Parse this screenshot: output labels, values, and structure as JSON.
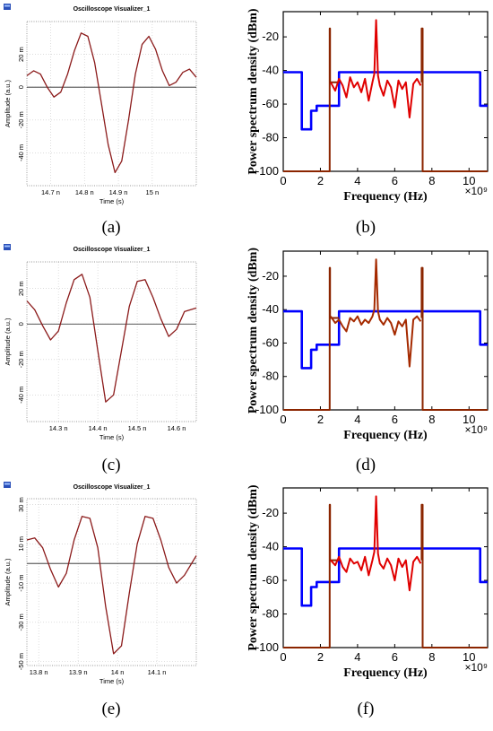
{
  "chart_data": [
    {
      "panel": "(a)",
      "type": "line",
      "title": "Oscilloscope Visualizer_1",
      "xlabel": "Time (s)",
      "ylabel": "Amplitude (a.u.)",
      "xlim": [
        14.63,
        15.13
      ],
      "ylim": [
        -60,
        40
      ],
      "xticks": [
        {
          "v": 14.7,
          "l": "14.7 n"
        },
        {
          "v": 14.8,
          "l": "14.8 n"
        },
        {
          "v": 14.9,
          "l": "14.9 n"
        },
        {
          "v": 15.0,
          "l": "15 n"
        }
      ],
      "yticks": [
        {
          "v": 20,
          "l": "20 m"
        },
        {
          "v": 0,
          "l": "0"
        },
        {
          "v": -20,
          "l": "-20 m"
        },
        {
          "v": -40,
          "l": "-40 m"
        }
      ],
      "series": [
        {
          "color": "#8B1A1A",
          "x": [
            14.63,
            14.65,
            14.67,
            14.69,
            14.71,
            14.73,
            14.75,
            14.77,
            14.79,
            14.81,
            14.83,
            14.85,
            14.87,
            14.89,
            14.91,
            14.93,
            14.95,
            14.97,
            14.99,
            15.01,
            15.03,
            15.05,
            15.07,
            15.09,
            15.11,
            15.13
          ],
          "y": [
            7,
            10,
            8,
            0,
            -6,
            -3,
            8,
            22,
            33,
            31,
            15,
            -10,
            -35,
            -52,
            -45,
            -20,
            8,
            26,
            31,
            23,
            10,
            1,
            3,
            9,
            11,
            6
          ]
        }
      ]
    },
    {
      "panel": "(b)",
      "type": "line",
      "xlabel": "Frequency (Hz)",
      "ylabel": "Power spectrum density (dBm)",
      "x_multiplier": "×10⁹",
      "xlim": [
        0,
        11
      ],
      "ylim": [
        -100,
        -5
      ],
      "xticks": [
        {
          "v": 0,
          "l": "0"
        },
        {
          "v": 2,
          "l": "2"
        },
        {
          "v": 4,
          "l": "4"
        },
        {
          "v": 6,
          "l": "6"
        },
        {
          "v": 8,
          "l": "8"
        },
        {
          "v": 10,
          "l": "10"
        }
      ],
      "yticks": [
        {
          "v": -20,
          "l": "-20"
        },
        {
          "v": -40,
          "l": "-40"
        },
        {
          "v": -60,
          "l": "-60"
        },
        {
          "v": -80,
          "l": "-80"
        },
        {
          "v": -100,
          "l": "-100"
        }
      ],
      "series": [
        {
          "color": "#0000FF",
          "x": [
            0,
            1,
            1,
            1.5,
            1.5,
            1.8,
            1.8,
            3,
            3,
            10.6,
            10.6,
            11
          ],
          "y": [
            -41,
            -41,
            -75,
            -75,
            -64,
            -64,
            -61,
            -61,
            -41,
            -41,
            -61,
            -61
          ]
        },
        {
          "color": "#8B2500",
          "x": [
            0,
            2.5,
            2.5,
            2.52,
            2.52,
            3
          ],
          "y": [
            -100,
            -100,
            -15,
            -15,
            -47,
            -47
          ]
        },
        {
          "color": "#8B2500",
          "x": [
            7.45,
            7.45,
            7.5,
            7.5,
            11
          ],
          "y": [
            -47,
            -15,
            -15,
            -100,
            -100
          ]
        },
        {
          "color": "#E00000",
          "x": [
            2.55,
            2.8,
            3.0,
            3.2,
            3.4,
            3.6,
            3.8,
            4.0,
            4.2,
            4.4,
            4.6,
            4.8,
            4.9,
            5.0,
            5.1,
            5.2,
            5.4,
            5.6,
            5.8,
            6.0,
            6.2,
            6.4,
            6.6,
            6.8,
            7.0,
            7.2,
            7.4
          ],
          "y": [
            -47,
            -52,
            -45,
            -49,
            -56,
            -44,
            -50,
            -47,
            -53,
            -45,
            -58,
            -47,
            -42,
            -10,
            -43,
            -49,
            -55,
            -46,
            -50,
            -62,
            -46,
            -51,
            -47,
            -68,
            -48,
            -45,
            -49
          ]
        }
      ]
    },
    {
      "panel": "(c)",
      "type": "line",
      "title": "Oscilloscope Visualizer_1",
      "xlabel": "Time (s)",
      "ylabel": "Amplitude (a.u.)",
      "xlim": [
        14.22,
        14.65
      ],
      "ylim": [
        -55,
        35
      ],
      "xticks": [
        {
          "v": 14.3,
          "l": "14.3 n"
        },
        {
          "v": 14.4,
          "l": "14.4 n"
        },
        {
          "v": 14.5,
          "l": "14.5 n"
        },
        {
          "v": 14.6,
          "l": "14.6 n"
        }
      ],
      "yticks": [
        {
          "v": 20,
          "l": "20 m"
        },
        {
          "v": 0,
          "l": "0"
        },
        {
          "v": -20,
          "l": "-20 m"
        },
        {
          "v": -40,
          "l": "-40 m"
        }
      ],
      "series": [
        {
          "color": "#8B1A1A",
          "x": [
            14.22,
            14.24,
            14.26,
            14.28,
            14.3,
            14.32,
            14.34,
            14.36,
            14.38,
            14.4,
            14.42,
            14.44,
            14.46,
            14.48,
            14.5,
            14.52,
            14.54,
            14.56,
            14.58,
            14.6,
            14.62,
            14.65
          ],
          "y": [
            13,
            8,
            -1,
            -9,
            -4,
            12,
            25,
            28,
            15,
            -15,
            -44,
            -40,
            -15,
            10,
            24,
            25,
            15,
            3,
            -7,
            -3,
            7,
            9
          ]
        }
      ]
    },
    {
      "panel": "(d)",
      "type": "line",
      "xlabel": "Frequency (Hz)",
      "ylabel": "Power spectrum density (dBm)",
      "x_multiplier": "×10⁹",
      "xlim": [
        0,
        11
      ],
      "ylim": [
        -100,
        -5
      ],
      "xticks": [
        {
          "v": 0,
          "l": "0"
        },
        {
          "v": 2,
          "l": "2"
        },
        {
          "v": 4,
          "l": "4"
        },
        {
          "v": 6,
          "l": "6"
        },
        {
          "v": 8,
          "l": "8"
        },
        {
          "v": 10,
          "l": "10"
        }
      ],
      "yticks": [
        {
          "v": -20,
          "l": "-20"
        },
        {
          "v": -40,
          "l": "-40"
        },
        {
          "v": -60,
          "l": "-60"
        },
        {
          "v": -80,
          "l": "-80"
        },
        {
          "v": -100,
          "l": "-100"
        }
      ],
      "series": [
        {
          "color": "#0000FF",
          "x": [
            0,
            1,
            1,
            1.5,
            1.5,
            1.8,
            1.8,
            3,
            3,
            10.6,
            10.6,
            11
          ],
          "y": [
            -41,
            -41,
            -75,
            -75,
            -64,
            -64,
            -61,
            -61,
            -41,
            -41,
            -61,
            -61
          ]
        },
        {
          "color": "#8B2500",
          "x": [
            0,
            2.5,
            2.5,
            2.52,
            2.52,
            3
          ],
          "y": [
            -100,
            -100,
            -15,
            -15,
            -45,
            -45
          ]
        },
        {
          "color": "#8B2500",
          "x": [
            7.45,
            7.45,
            7.5,
            7.5,
            11
          ],
          "y": [
            -45,
            -15,
            -15,
            -100,
            -100
          ]
        },
        {
          "color": "#A52A00",
          "x": [
            2.55,
            2.8,
            3.0,
            3.2,
            3.4,
            3.6,
            3.8,
            4.0,
            4.2,
            4.4,
            4.6,
            4.8,
            4.9,
            5.0,
            5.1,
            5.2,
            5.4,
            5.6,
            5.8,
            6.0,
            6.2,
            6.4,
            6.6,
            6.8,
            7.0,
            7.2,
            7.4
          ],
          "y": [
            -44,
            -48,
            -46,
            -50,
            -53,
            -45,
            -47,
            -44,
            -49,
            -46,
            -48,
            -44,
            -40,
            -10,
            -41,
            -46,
            -49,
            -45,
            -48,
            -55,
            -47,
            -50,
            -46,
            -74,
            -46,
            -44,
            -47
          ]
        }
      ]
    },
    {
      "panel": "(e)",
      "type": "line",
      "title": "Oscilloscope Visualizer_1",
      "xlabel": "Time (s)",
      "ylabel": "Amplitude (a.u.)",
      "xlim": [
        13.77,
        14.2
      ],
      "ylim": [
        -52,
        33
      ],
      "xticks": [
        {
          "v": 13.8,
          "l": "13.8 n"
        },
        {
          "v": 13.9,
          "l": "13.9 n"
        },
        {
          "v": 14.0,
          "l": "14 n"
        },
        {
          "v": 14.1,
          "l": "14.1 n"
        }
      ],
      "yticks": [
        {
          "v": 30,
          "l": "30 m"
        },
        {
          "v": 10,
          "l": "10 m"
        },
        {
          "v": -10,
          "l": "-10 m"
        },
        {
          "v": -30,
          "l": "-30 m"
        },
        {
          "v": -50,
          "l": "-50 m"
        }
      ],
      "series": [
        {
          "color": "#8B1A1A",
          "x": [
            13.77,
            13.79,
            13.81,
            13.83,
            13.85,
            13.87,
            13.89,
            13.91,
            13.93,
            13.95,
            13.97,
            13.99,
            14.01,
            14.03,
            14.05,
            14.07,
            14.09,
            14.11,
            14.13,
            14.15,
            14.17,
            14.2
          ],
          "y": [
            12,
            13,
            8,
            -3,
            -12,
            -5,
            12,
            24,
            23,
            8,
            -22,
            -46,
            -42,
            -15,
            10,
            24,
            23,
            12,
            -2,
            -10,
            -6,
            4
          ]
        }
      ]
    },
    {
      "panel": "(f)",
      "type": "line",
      "xlabel": "Frequency (Hz)",
      "ylabel": "Power spectrum density (dBm)",
      "x_multiplier": "×10⁹",
      "xlim": [
        0,
        11
      ],
      "ylim": [
        -100,
        -5
      ],
      "xticks": [
        {
          "v": 0,
          "l": "0"
        },
        {
          "v": 2,
          "l": "2"
        },
        {
          "v": 4,
          "l": "4"
        },
        {
          "v": 6,
          "l": "6"
        },
        {
          "v": 8,
          "l": "8"
        },
        {
          "v": 10,
          "l": "10"
        }
      ],
      "yticks": [
        {
          "v": -20,
          "l": "-20"
        },
        {
          "v": -40,
          "l": "-40"
        },
        {
          "v": -60,
          "l": "-60"
        },
        {
          "v": -80,
          "l": "-80"
        },
        {
          "v": -100,
          "l": "-100"
        }
      ],
      "series": [
        {
          "color": "#0000FF",
          "x": [
            0,
            1,
            1,
            1.5,
            1.5,
            1.8,
            1.8,
            3,
            3,
            10.6,
            10.6,
            11
          ],
          "y": [
            -41,
            -41,
            -75,
            -75,
            -64,
            -64,
            -61,
            -61,
            -41,
            -41,
            -61,
            -61
          ]
        },
        {
          "color": "#8B2500",
          "x": [
            0,
            2.5,
            2.5,
            2.52,
            2.52,
            3
          ],
          "y": [
            -100,
            -100,
            -15,
            -15,
            -48,
            -48
          ]
        },
        {
          "color": "#8B2500",
          "x": [
            7.45,
            7.45,
            7.5,
            7.5,
            11
          ],
          "y": [
            -48,
            -15,
            -15,
            -100,
            -100
          ]
        },
        {
          "color": "#E00000",
          "x": [
            2.55,
            2.8,
            3.0,
            3.2,
            3.4,
            3.6,
            3.8,
            4.0,
            4.2,
            4.4,
            4.6,
            4.8,
            4.9,
            5.0,
            5.1,
            5.2,
            5.4,
            5.6,
            5.8,
            6.0,
            6.2,
            6.4,
            6.6,
            6.8,
            7.0,
            7.2,
            7.4
          ],
          "y": [
            -48,
            -51,
            -46,
            -52,
            -55,
            -47,
            -50,
            -49,
            -54,
            -46,
            -57,
            -48,
            -43,
            -10,
            -44,
            -50,
            -53,
            -47,
            -51,
            -60,
            -47,
            -52,
            -48,
            -66,
            -49,
            -46,
            -50
          ]
        }
      ]
    }
  ],
  "panel_labels": [
    "(a)",
    "(b)",
    "(c)",
    "(d)",
    "(e)",
    "(f)"
  ]
}
